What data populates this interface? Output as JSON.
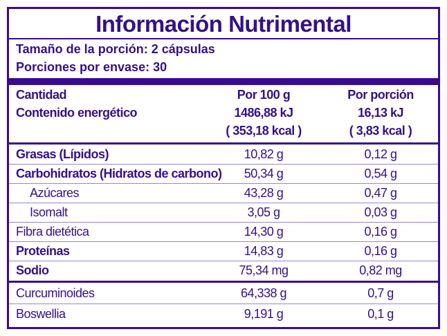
{
  "title": "Información Nutrimental",
  "serving": {
    "size": "Tamaño de la porción:  2 cápsulas",
    "per_container": "Porciones por envase:  30"
  },
  "header": {
    "label1": "Cantidad",
    "label2": "Contenido energético",
    "col1": [
      "Por 100 g",
      "1486,88 kJ",
      "( 353,18 kcal )"
    ],
    "col2": [
      "Por porción",
      "16,13 kJ",
      "( 3,83 kcal )"
    ]
  },
  "rows": [
    {
      "name": "Grasas (Lípidos)",
      "per100": "10,82 g",
      "per_serving": "0,12 g"
    },
    {
      "name": "Carbohidratos (Hidratos de carbono)",
      "per100": "50,34 g",
      "per_serving": "0,54 g"
    },
    {
      "name": "Azúcares",
      "per100": "43,28 g",
      "per_serving": "0,47 g"
    },
    {
      "name": "Isomalt",
      "per100": "3,05 g",
      "per_serving": "0,03 g"
    },
    {
      "name": "Fibra dietética",
      "per100": "14,30 g",
      "per_serving": "0,16 g"
    },
    {
      "name": "Proteínas",
      "per100": "14,83 g",
      "per_serving": "0,16 g"
    },
    {
      "name": "Sodio",
      "per100": "75,34 mg",
      "per_serving": "0,82 mg"
    },
    {
      "name": "Curcuminoides",
      "per100": "64,338   g",
      "per_serving": "0,7 g"
    },
    {
      "name": "Boswellia",
      "per100": "9,191 g",
      "per_serving": "0,1 g"
    }
  ],
  "colors": {
    "primary": "#3a0a8f",
    "divider": "#9b85d2"
  }
}
